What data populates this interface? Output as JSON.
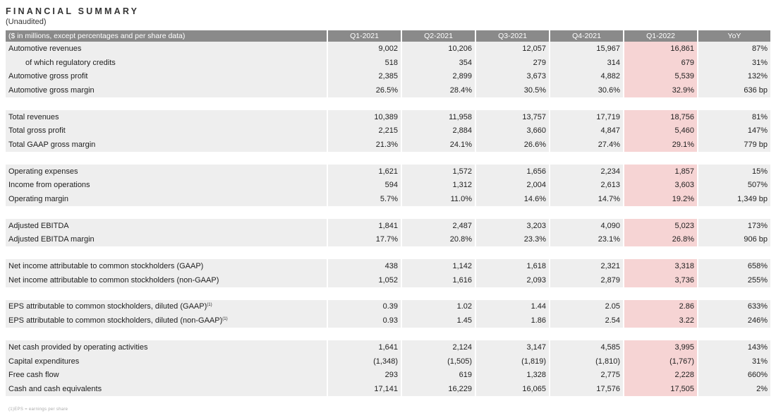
{
  "title": "FINANCIAL SUMMARY",
  "subtitle": "(Unaudited)",
  "header": [
    "($ in millions, except percentages and per share data)",
    "Q1-2021",
    "Q2-2021",
    "Q3-2021",
    "Q4-2021",
    "Q1-2022",
    "YoY"
  ],
  "rows": {
    "auto_rev": [
      "Automotive revenues",
      "9,002",
      "10,206",
      "12,057",
      "15,967",
      "16,861",
      "87%"
    ],
    "reg_credits": [
      "of which regulatory credits",
      "518",
      "354",
      "279",
      "314",
      "679",
      "31%"
    ],
    "auto_gp": [
      "Automotive gross profit",
      "2,385",
      "2,899",
      "3,673",
      "4,882",
      "5,539",
      "132%"
    ],
    "auto_gm": [
      "Automotive gross margin",
      "26.5%",
      "28.4%",
      "30.5%",
      "30.6%",
      "32.9%",
      "636 bp"
    ],
    "total_rev": [
      "Total revenues",
      "10,389",
      "11,958",
      "13,757",
      "17,719",
      "18,756",
      "81%"
    ],
    "total_gp": [
      "Total gross profit",
      "2,215",
      "2,884",
      "3,660",
      "4,847",
      "5,460",
      "147%"
    ],
    "gaap_gm": [
      "Total GAAP gross margin",
      "21.3%",
      "24.1%",
      "26.6%",
      "27.4%",
      "29.1%",
      "779 bp"
    ],
    "opex": [
      "Operating expenses",
      "1,621",
      "1,572",
      "1,656",
      "2,234",
      "1,857",
      "15%"
    ],
    "inc_ops": [
      "Income from operations",
      "594",
      "1,312",
      "2,004",
      "2,613",
      "3,603",
      "507%"
    ],
    "op_margin": [
      "Operating margin",
      "5.7%",
      "11.0%",
      "14.6%",
      "14.7%",
      "19.2%",
      "1,349 bp"
    ],
    "ebitda": [
      "Adjusted EBITDA",
      "1,841",
      "2,487",
      "3,203",
      "4,090",
      "5,023",
      "173%"
    ],
    "ebitda_m": [
      "Adjusted EBITDA margin",
      "17.7%",
      "20.8%",
      "23.3%",
      "23.1%",
      "26.8%",
      "906 bp"
    ],
    "ni_gaap": [
      "Net income attributable to common stockholders (GAAP)",
      "438",
      "1,142",
      "1,618",
      "2,321",
      "3,318",
      "658%"
    ],
    "ni_non": [
      "Net income attributable to common stockholders (non-GAAP)",
      "1,052",
      "1,616",
      "2,093",
      "2,879",
      "3,736",
      "255%"
    ],
    "eps_gaap": [
      "EPS attributable to common stockholders, diluted (GAAP)",
      "0.39",
      "1.02",
      "1.44",
      "2.05",
      "2.86",
      "633%"
    ],
    "eps_non": [
      "EPS attributable to common stockholders, diluted (non-GAAP)",
      "0.93",
      "1.45",
      "1.86",
      "2.54",
      "3.22",
      "246%"
    ],
    "ocf": [
      "Net cash provided by operating activities",
      "1,641",
      "2,124",
      "3,147",
      "4,585",
      "3,995",
      "143%"
    ],
    "capex": [
      "Capital expenditures",
      "(1,348)",
      "(1,505)",
      "(1,819)",
      "(1,810)",
      "(1,767)",
      "31%"
    ],
    "fcf": [
      "Free cash flow",
      "293",
      "619",
      "1,328",
      "2,775",
      "2,228",
      "660%"
    ],
    "cash": [
      "Cash and cash equivalents",
      "17,141",
      "16,229",
      "16,065",
      "17,576",
      "17,505",
      "2%"
    ]
  },
  "eps_sup": "(1)",
  "footnote": "(1)EPS = earnings per share"
}
